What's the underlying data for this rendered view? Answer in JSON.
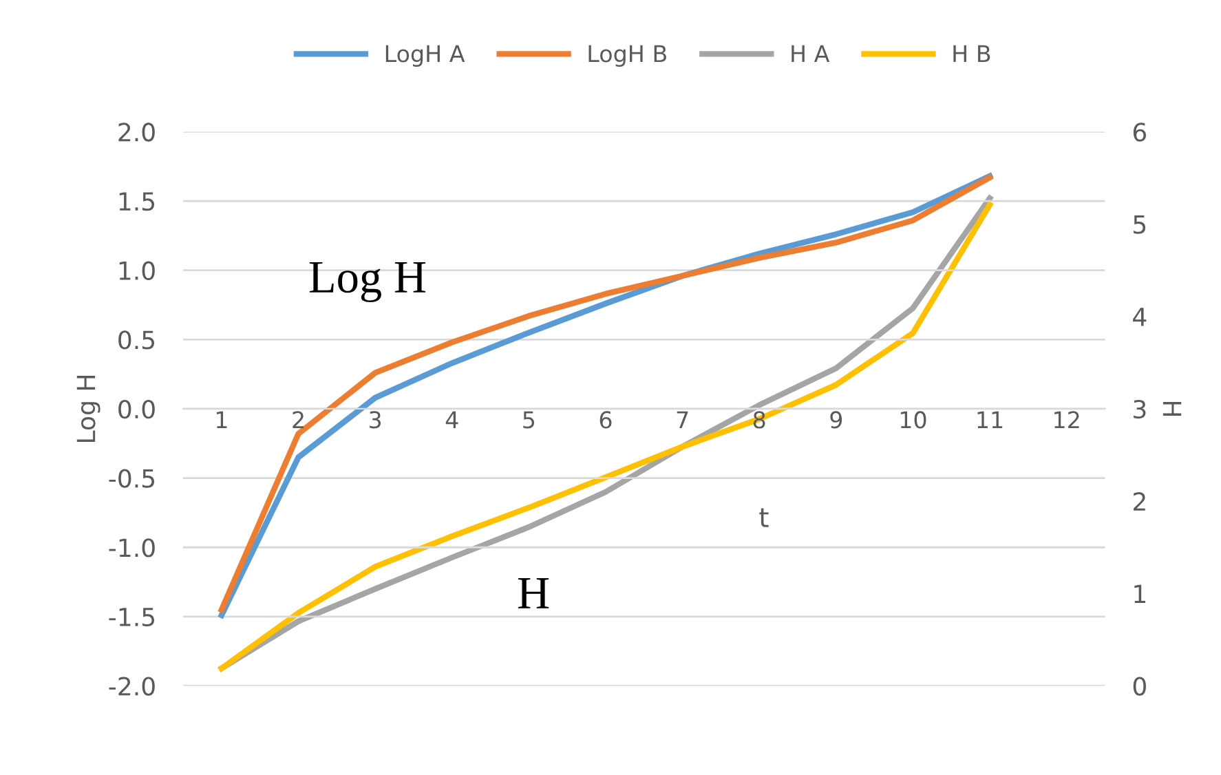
{
  "chart_data": {
    "type": "line",
    "categories": [
      "1",
      "2",
      "3",
      "4",
      "5",
      "6",
      "7",
      "8",
      "9",
      "10",
      "11",
      "12"
    ],
    "xlabel": "t",
    "ylabel": "Log H",
    "y2label": "H",
    "ylim": [
      -2.0,
      2.0
    ],
    "yticks": [
      {
        "value": -2.0,
        "label": "-2.0"
      },
      {
        "value": -1.5,
        "label": "-1.5"
      },
      {
        "value": -1.0,
        "label": "-1.0"
      },
      {
        "value": -0.5,
        "label": "-0.5"
      },
      {
        "value": 0.0,
        "label": "0.0"
      },
      {
        "value": 0.5,
        "label": "0.5"
      },
      {
        "value": 1.0,
        "label": "1.0"
      },
      {
        "value": 1.5,
        "label": "1.5"
      },
      {
        "value": 2.0,
        "label": "2.0"
      }
    ],
    "y2lim": [
      0,
      6
    ],
    "y2ticks": [
      0,
      1,
      2,
      3,
      4,
      5,
      6
    ],
    "grid": "y",
    "legend": "top",
    "marker": "none",
    "line_style": "solid",
    "annotations": [
      "Log H",
      "H"
    ],
    "series": [
      {
        "name": "LogH A",
        "color": "#5b9bd5",
        "values": [
          -1.49,
          -0.35,
          0.08,
          0.33,
          0.55,
          0.76,
          0.96,
          1.12,
          1.26,
          1.42,
          1.68,
          null
        ]
      },
      {
        "name": "LogH B",
        "color": "#ed7d31",
        "values": [
          -1.45,
          -0.18,
          0.26,
          0.48,
          0.67,
          0.83,
          0.96,
          1.09,
          1.2,
          1.36,
          1.67,
          null
        ]
      },
      {
        "name": "H A",
        "color": "#a5a5a5",
        "axis": "y2",
        "values": [
          0.19,
          0.7,
          1.05,
          1.39,
          1.72,
          2.1,
          2.59,
          3.04,
          3.44,
          4.09,
          5.28,
          null
        ]
      },
      {
        "name": "H B",
        "color": "#ffc000",
        "axis": "y2",
        "values": [
          0.19,
          0.79,
          1.29,
          1.62,
          1.93,
          2.26,
          2.59,
          2.89,
          3.26,
          3.82,
          5.21,
          null
        ]
      }
    ]
  }
}
